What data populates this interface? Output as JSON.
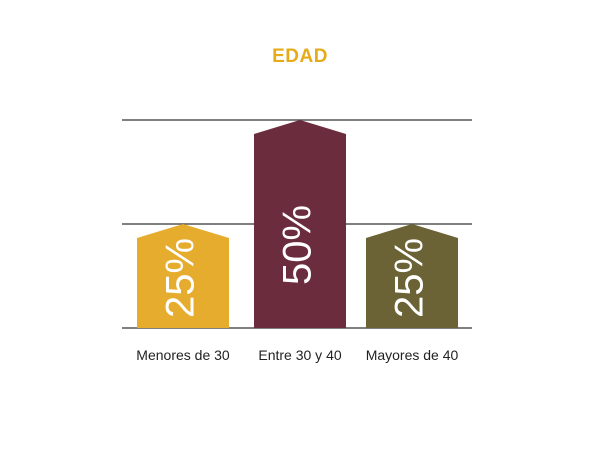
{
  "chart_data": {
    "type": "bar",
    "title": "EDAD",
    "categories": [
      "Menores de  30",
      "Entre 30 y 40",
      "Mayores de 40"
    ],
    "values": [
      25,
      50,
      25
    ],
    "value_labels": [
      "25%",
      "50%",
      "25%"
    ],
    "bar_colors": [
      "#e6ac2e",
      "#6b2c3d",
      "#6b6335"
    ],
    "ylim": [
      0,
      50
    ],
    "gridlines": [
      0,
      25,
      50
    ],
    "grid": true,
    "legend": "none"
  },
  "colors": {
    "title": "#e6ac18",
    "grid": "#555555"
  }
}
